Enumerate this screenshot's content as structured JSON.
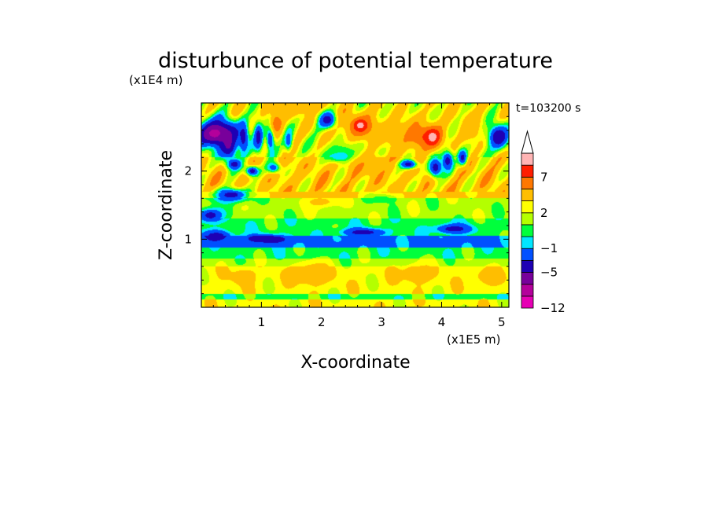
{
  "chart_data": {
    "type": "heatmap",
    "title": "disturbunce of potential temperature",
    "xlabel": "X-coordinate",
    "ylabel": "Z-coordinate",
    "x_unit": "(x1E5 m)",
    "y_unit": "(x1E4 m)",
    "time_label": "t=103200 s",
    "xlim": [
      0,
      5.12
    ],
    "ylim": [
      0,
      3.0
    ],
    "x_ticks": [
      {
        "value": 1,
        "label": "1"
      },
      {
        "value": 2,
        "label": "2"
      },
      {
        "value": 3,
        "label": "3"
      },
      {
        "value": 4,
        "label": "4"
      },
      {
        "value": 5,
        "label": "5"
      }
    ],
    "y_ticks": [
      {
        "value": 1,
        "label": "1"
      },
      {
        "value": 2,
        "label": "2"
      }
    ],
    "colorbar": {
      "levels": [
        -12,
        -9,
        -7,
        -5,
        -3,
        -1,
        0,
        1,
        2,
        3,
        5,
        7,
        9,
        12
      ],
      "labels": [
        {
          "level_index": 0,
          "label": "-12"
        },
        {
          "level_index": 3,
          "label": "-5"
        },
        {
          "level_index": 5,
          "label": "-1"
        },
        {
          "level_index": 8,
          "label": "2"
        },
        {
          "level_index": 11,
          "label": "7"
        }
      ],
      "colors": [
        "#e600b4",
        "#b4009b",
        "#78009b",
        "#1e00b4",
        "#0050ff",
        "#00e6ff",
        "#00ff3c",
        "#b4ff00",
        "#ffff00",
        "#ffbe00",
        "#ff7800",
        "#ff1e00",
        "#ffb4b4"
      ],
      "extend_top_color": "#ffffff"
    },
    "field": {
      "description_free": true,
      "background_layers": [
        {
          "z": [
            0.0,
            0.12
          ],
          "value": 2.5
        },
        {
          "z": [
            0.12,
            0.2
          ],
          "value": 0.5
        },
        {
          "z": [
            0.2,
            0.6
          ],
          "value": 2.5
        },
        {
          "z": [
            0.6,
            0.72
          ],
          "value": 1.5
        },
        {
          "z": [
            0.72,
            0.88
          ],
          "value": 0.5
        },
        {
          "z": [
            0.88,
            1.05
          ],
          "value": -1.5
        },
        {
          "z": [
            1.05,
            1.3
          ],
          "value": 0.5
        },
        {
          "z": [
            1.3,
            1.6
          ],
          "value": 1.5
        },
        {
          "z": [
            1.6,
            2.2
          ],
          "value": 3.5
        },
        {
          "z": [
            2.2,
            3.0
          ],
          "value": 2.5
        }
      ],
      "blobs": [
        {
          "x": 0.25,
          "z": 2.55,
          "rx": 0.35,
          "rz": 0.2,
          "value": -8
        },
        {
          "x": 0.45,
          "z": 2.4,
          "rx": 0.15,
          "rz": 0.25,
          "value": -5.5
        },
        {
          "x": 0.7,
          "z": 2.5,
          "rx": 0.08,
          "rz": 0.22,
          "value": -4
        },
        {
          "x": 0.95,
          "z": 2.5,
          "rx": 0.08,
          "rz": 0.22,
          "value": -4
        },
        {
          "x": 1.15,
          "z": 2.5,
          "rx": 0.07,
          "rz": 0.2,
          "value": -4
        },
        {
          "x": 1.45,
          "z": 2.45,
          "rx": 0.07,
          "rz": 0.16,
          "value": -2
        },
        {
          "x": 0.55,
          "z": 2.1,
          "rx": 0.12,
          "rz": 0.08,
          "value": -4
        },
        {
          "x": 0.85,
          "z": 2.0,
          "rx": 0.12,
          "rz": 0.08,
          "value": -4
        },
        {
          "x": 1.2,
          "z": 2.05,
          "rx": 0.12,
          "rz": 0.08,
          "value": -2
        },
        {
          "x": 0.5,
          "z": 1.65,
          "rx": 0.3,
          "rz": 0.1,
          "value": -4
        },
        {
          "x": 0.15,
          "z": 1.35,
          "rx": 0.2,
          "rz": 0.1,
          "value": -4
        },
        {
          "x": 0.25,
          "z": 1.05,
          "rx": 0.25,
          "rz": 0.08,
          "value": -4
        },
        {
          "x": 1.1,
          "z": 1.0,
          "rx": 0.4,
          "rz": 0.07,
          "value": -4
        },
        {
          "x": 2.7,
          "z": 1.1,
          "rx": 0.35,
          "rz": 0.06,
          "value": -4
        },
        {
          "x": 4.2,
          "z": 1.15,
          "rx": 0.3,
          "rz": 0.07,
          "value": -4
        },
        {
          "x": 1.6,
          "z": 2.95,
          "rx": 0.45,
          "rz": 0.12,
          "value": 5
        },
        {
          "x": 1.25,
          "z": 2.7,
          "rx": 0.12,
          "rz": 0.18,
          "value": 6
        },
        {
          "x": 2.65,
          "z": 2.65,
          "rx": 0.3,
          "rz": 0.2,
          "value": 6.5
        },
        {
          "x": 2.65,
          "z": 2.67,
          "rx": 0.1,
          "rz": 0.08,
          "value": 10
        },
        {
          "x": 3.2,
          "z": 2.55,
          "rx": 0.25,
          "rz": 0.2,
          "value": 4
        },
        {
          "x": 3.7,
          "z": 2.5,
          "rx": 0.35,
          "rz": 0.22,
          "value": 6.5
        },
        {
          "x": 3.85,
          "z": 2.5,
          "rx": 0.12,
          "rz": 0.12,
          "value": 10
        },
        {
          "x": 2.1,
          "z": 2.75,
          "rx": 0.14,
          "rz": 0.12,
          "value": -4
        },
        {
          "x": 2.35,
          "z": 2.3,
          "rx": 0.3,
          "rz": 0.14,
          "value": 0.5
        },
        {
          "x": 2.35,
          "z": 2.2,
          "rx": 0.25,
          "rz": 0.08,
          "value": -1.5
        },
        {
          "x": 2.8,
          "z": 2.1,
          "rx": 0.35,
          "rz": 0.15,
          "value": 5
        },
        {
          "x": 3.45,
          "z": 2.1,
          "rx": 0.15,
          "rz": 0.07,
          "value": -4
        },
        {
          "x": 3.9,
          "z": 2.05,
          "rx": 0.12,
          "rz": 0.15,
          "value": -4
        },
        {
          "x": 4.1,
          "z": 2.15,
          "rx": 0.1,
          "rz": 0.15,
          "value": -4
        },
        {
          "x": 4.35,
          "z": 2.2,
          "rx": 0.08,
          "rz": 0.12,
          "value": -4
        },
        {
          "x": 4.5,
          "z": 2.65,
          "rx": 0.2,
          "rz": 0.25,
          "value": 4
        },
        {
          "x": 4.95,
          "z": 2.5,
          "rx": 0.18,
          "rz": 0.18,
          "value": -5
        },
        {
          "x": 2.0,
          "z": 1.55,
          "rx": 0.3,
          "rz": 0.1,
          "value": 3.5
        },
        {
          "x": 3.0,
          "z": 1.6,
          "rx": 0.3,
          "rz": 0.08,
          "value": 0.5
        },
        {
          "x": 1.85,
          "z": 0.5,
          "rx": 0.3,
          "rz": 0.15,
          "value": 5
        },
        {
          "x": 3.6,
          "z": 0.5,
          "rx": 0.3,
          "rz": 0.15,
          "value": 4
        },
        {
          "x": 0.7,
          "z": 0.45,
          "rx": 0.2,
          "rz": 0.12,
          "value": 4
        },
        {
          "x": 4.8,
          "z": 0.45,
          "rx": 0.25,
          "rz": 0.12,
          "value": 4
        }
      ]
    }
  }
}
